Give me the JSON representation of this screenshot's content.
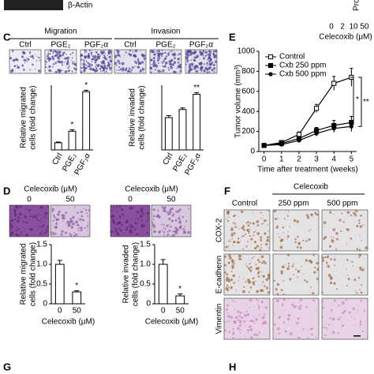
{
  "top": {
    "blot_label": "β-Actin",
    "cut_label": "Pro",
    "doses": [
      "0",
      "2",
      "10",
      "50"
    ],
    "axis_label": "Celecoxib (μM)"
  },
  "panel_c": {
    "label": "C",
    "migration": {
      "title": "Migration",
      "image_labels": [
        "Ctrl",
        "PGE₂",
        "PGF₂α"
      ]
    },
    "invasion": {
      "title": "Invasion",
      "image_labels": [
        "Ctrl",
        "PGE₂",
        "PGF₂α"
      ]
    },
    "migration_chart": {
      "type": "bar",
      "ylabel": [
        "Relative migrated",
        "cells (fold change)"
      ],
      "categories": [
        "Ctrl",
        "PGE₂",
        "PGF₂α"
      ],
      "values": [
        1,
        2.6,
        8.1
      ],
      "errors": [
        0.1,
        0.2,
        0.2
      ],
      "annotations": [
        null,
        "*",
        "*"
      ],
      "ylim": [
        0,
        9
      ]
    },
    "invasion_chart": {
      "type": "bar",
      "ylabel": [
        "Relative invaded",
        "cells (fold change)"
      ],
      "categories": [
        "Ctrl",
        "PGE₂",
        "PGF₂α"
      ],
      "values": [
        1.0,
        1.25,
        1.72
      ],
      "errors": [
        0.06,
        0.05,
        0.05
      ],
      "annotations": [
        null,
        null,
        "**"
      ],
      "ylim": [
        0,
        2
      ]
    }
  },
  "panel_d": {
    "label": "D",
    "migration_header": {
      "title": "Celecoxib (μM)",
      "doses": [
        "0",
        "50"
      ]
    },
    "invasion_header": {
      "title": "Celecoxib (μM)",
      "doses": [
        "0",
        "50"
      ]
    },
    "migration_chart": {
      "type": "bar",
      "ylabel": [
        "Relative migrated",
        "cells (fold change)"
      ],
      "xlabel": "Celecoxib (μM)",
      "categories": [
        "0",
        "50"
      ],
      "values": [
        1.0,
        0.3
      ],
      "errors": [
        0.1,
        0.03
      ],
      "annotations": [
        null,
        "*"
      ],
      "ylim": [
        0,
        1.5
      ],
      "yticks": [
        0,
        0.5,
        {
          "value": 1,
          "label": "1.0"
        },
        1.5
      ]
    },
    "invasion_chart": {
      "type": "bar",
      "ylabel": [
        "Relative invaded",
        "cells (fold change)"
      ],
      "xlabel": "Celecoxib (μM)",
      "categories": [
        "0",
        "50"
      ],
      "values": [
        1.0,
        0.2
      ],
      "errors": [
        0.12,
        0.05
      ],
      "annotations": [
        null,
        "*"
      ],
      "ylim": [
        0,
        1.5
      ],
      "yticks": [
        0,
        0.5,
        {
          "value": 1,
          "label": "1.0"
        },
        1.5
      ]
    }
  },
  "panel_e": {
    "label": "E",
    "chart": {
      "type": "line",
      "ylabel": "Tumor volume (mm³)",
      "xlabel": "Time after treatment (weeks)",
      "x": [
        0,
        1,
        2,
        3,
        4,
        5
      ],
      "xlim": [
        -0.3,
        5.3
      ],
      "xticks": [
        0,
        1,
        2,
        3,
        4,
        5
      ],
      "ylim": [
        0,
        1000
      ],
      "yticks": [
        0,
        200,
        400,
        600,
        800,
        1000
      ],
      "series": [
        {
          "name": "Control",
          "color": "#000000",
          "marker": "open-square",
          "values": [
            60,
            90,
            170,
            430,
            680,
            740
          ],
          "errors": [
            10,
            15,
            25,
            40,
            70,
            90
          ]
        },
        {
          "name": "Cxb 250 ppm",
          "color": "#000000",
          "marker": "filled-square",
          "values": [
            60,
            80,
            130,
            210,
            260,
            290
          ],
          "errors": [
            10,
            12,
            20,
            30,
            50,
            60
          ]
        },
        {
          "name": "Cxb 500 ppm",
          "color": "#000000",
          "marker": "filled-circle",
          "values": [
            60,
            70,
            110,
            180,
            230,
            250
          ],
          "errors": [
            10,
            10,
            15,
            25,
            40,
            50
          ]
        }
      ],
      "annotations": [
        "*",
        "**"
      ]
    }
  },
  "panel_f": {
    "label": "F",
    "group": "Celecoxib",
    "columns": [
      "Control",
      "250 ppm",
      "500 ppm"
    ],
    "rows": [
      "COX-2",
      "E-cadhenn",
      "Vimentin"
    ]
  },
  "panel_g": {
    "label": "G"
  },
  "panel_h": {
    "label": "H"
  }
}
